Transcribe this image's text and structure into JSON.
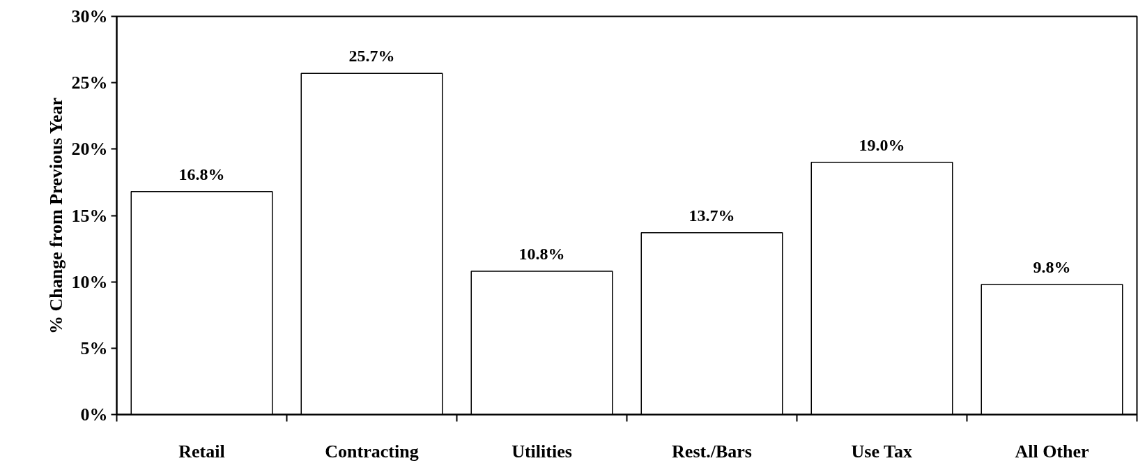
{
  "chart_data": {
    "type": "bar",
    "ylabel": "% Change from Previous Year",
    "categories": [
      "Retail",
      "Contracting",
      "Utilities",
      "Rest./Bars",
      "Use Tax",
      "All Other"
    ],
    "values": [
      16.8,
      25.7,
      10.8,
      13.7,
      19.0,
      9.8
    ],
    "value_labels": [
      "16.8%",
      "25.7%",
      "10.8%",
      "13.7%",
      "19.0%",
      "9.8%"
    ],
    "color": "#ffffff",
    "ylim": [
      0,
      30
    ],
    "yticks": [
      {
        "value": 0,
        "label": "0%"
      },
      {
        "value": 5,
        "label": "5%"
      },
      {
        "value": 10,
        "label": "10%"
      },
      {
        "value": 15,
        "label": "15%"
      },
      {
        "value": 20,
        "label": "20%"
      },
      {
        "value": 25,
        "label": "25%"
      },
      {
        "value": 30,
        "label": "30%"
      }
    ],
    "grid": false
  }
}
